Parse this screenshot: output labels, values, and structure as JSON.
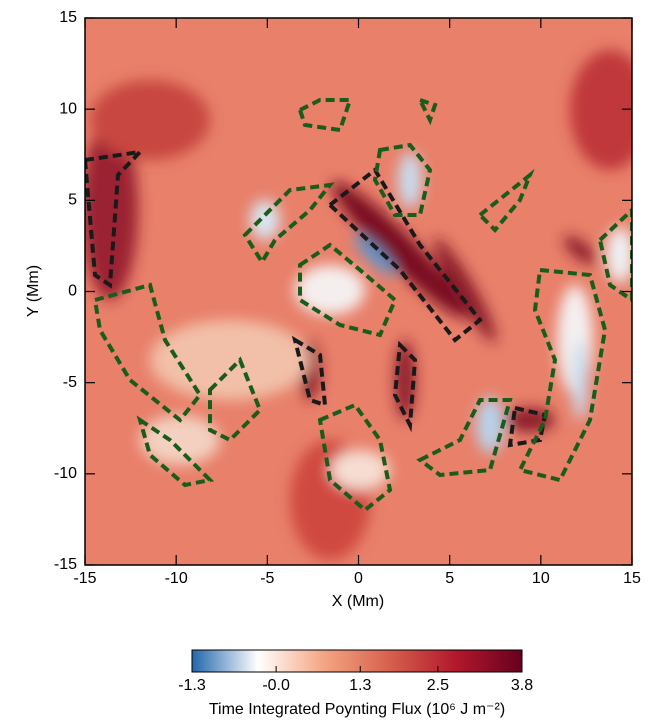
{
  "chart_data": {
    "type": "heatmap",
    "xlabel": "X (Mm)",
    "ylabel": "Y (Mm)",
    "xlim": [
      -15,
      15
    ],
    "ylim": [
      -15,
      15
    ],
    "xticks": [
      -15,
      -10,
      -5,
      0,
      5,
      10,
      15
    ],
    "yticks": [
      -15,
      -10,
      -5,
      0,
      5,
      10,
      15
    ],
    "colorbar": {
      "label": "Time Integrated Poynting Flux (10⁶ J m⁻²)",
      "clim": [
        -1.3,
        3.8
      ],
      "ticks": [
        -1.3,
        {
          "value": 0,
          "label": "-0.0"
        },
        1.3,
        2.5,
        3.8
      ],
      "colors": [
        "#2166ac",
        "#ffffff",
        "#f4a582",
        "#d6604d",
        "#b2182b",
        "#67001f"
      ]
    }
  }
}
